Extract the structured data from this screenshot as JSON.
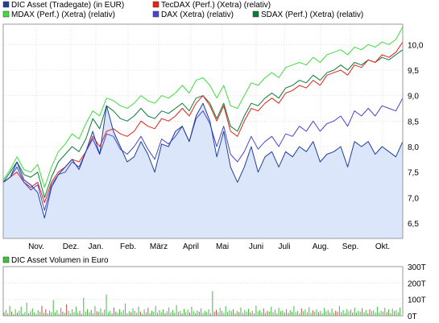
{
  "chart_data": [
    {
      "type": "line",
      "legend": [
        {
          "label": "DIC Asset (Tradegate) (in EUR)",
          "color": "#1f3f9f"
        },
        {
          "label": "TecDAX (Perf.) (Xetra) (relativ)",
          "color": "#e8231b"
        },
        {
          "label": "MDAX (Perf.) (Xetra) (relativ)",
          "color": "#3fdd3f"
        },
        {
          "label": "DAX (Xetra) (relativ)",
          "color": "#4646d2"
        },
        {
          "label": "SDAX (Perf.) (Xetra) (relativ)",
          "color": "#0d7a3d"
        }
      ],
      "x_labels": [
        "Nov.",
        "Dez.",
        "Jan.",
        "Feb.",
        "März",
        "April",
        "Mai",
        "Juni",
        "Juli",
        "Aug.",
        "Sep.",
        "Okt."
      ],
      "ylim": [
        6.2,
        10.4
      ],
      "y_ticks": [
        "6,5",
        "7,0",
        "7,5",
        "8,0",
        "8,5",
        "9,0",
        "9,5",
        "10,0"
      ],
      "series": [
        {
          "name": "DIC Asset (Tradegate) (in EUR)",
          "color": "#1f3f9f",
          "fill": "#dbe6fa",
          "x": [
            0,
            6,
            12,
            18,
            24,
            30,
            36,
            42,
            48,
            54,
            60,
            66,
            72,
            78,
            84,
            90,
            96,
            102,
            108,
            114,
            120,
            126,
            132,
            138,
            144,
            150,
            156,
            162,
            168,
            174,
            180,
            186,
            192,
            198,
            204,
            210,
            216,
            222,
            228,
            234,
            240,
            246,
            252,
            258,
            264,
            270,
            276,
            282,
            288,
            294,
            300,
            306,
            312,
            318,
            324,
            330,
            336,
            342,
            348
          ],
          "values": [
            7.3,
            7.4,
            7.7,
            7.35,
            7.25,
            7.1,
            6.6,
            7.2,
            7.45,
            7.6,
            7.75,
            7.55,
            7.9,
            8.3,
            7.85,
            8.8,
            8.3,
            8.0,
            7.7,
            7.8,
            8.1,
            7.85,
            7.5,
            8.05,
            8.0,
            8.3,
            8.4,
            8.1,
            8.6,
            8.85,
            8.5,
            7.8,
            8.3,
            7.6,
            7.3,
            7.6,
            8.0,
            7.5,
            7.8,
            7.9,
            7.6,
            7.9,
            7.8,
            8.0,
            7.9,
            8.1,
            7.7,
            7.85,
            7.9,
            8.0,
            7.6,
            8.1,
            8.0,
            8.1,
            7.85,
            8.0,
            7.9,
            7.8,
            8.1
          ]
        },
        {
          "name": "DAX (Xetra) (relativ)",
          "color": "#4646d2",
          "fill": "",
          "x": [
            0,
            6,
            12,
            18,
            24,
            30,
            36,
            42,
            48,
            54,
            60,
            66,
            72,
            78,
            84,
            90,
            96,
            102,
            108,
            114,
            120,
            126,
            132,
            138,
            144,
            150,
            156,
            162,
            168,
            174,
            180,
            186,
            192,
            198,
            204,
            210,
            216,
            222,
            228,
            234,
            240,
            246,
            252,
            258,
            264,
            270,
            276,
            282,
            288,
            294,
            300,
            306,
            312,
            318,
            324,
            330,
            336,
            342,
            348
          ],
          "values": [
            7.3,
            7.4,
            7.6,
            7.3,
            7.15,
            7.25,
            6.75,
            7.25,
            7.45,
            7.5,
            7.7,
            7.6,
            7.9,
            8.15,
            7.85,
            8.25,
            8.2,
            7.95,
            7.85,
            8.0,
            8.2,
            7.95,
            7.75,
            8.15,
            8.05,
            8.2,
            8.4,
            8.1,
            8.55,
            8.7,
            8.45,
            8.0,
            8.4,
            7.85,
            7.7,
            7.9,
            8.2,
            7.95,
            8.1,
            8.2,
            8.0,
            8.25,
            8.2,
            8.4,
            8.3,
            8.5,
            8.3,
            8.45,
            8.5,
            8.6,
            8.4,
            8.7,
            8.6,
            8.75,
            8.6,
            8.8,
            8.75,
            8.7,
            8.95
          ]
        },
        {
          "name": "TecDAX (Perf.) (Xetra) (relativ)",
          "color": "#e8231b",
          "fill": "",
          "x": [
            0,
            6,
            12,
            18,
            24,
            30,
            36,
            42,
            48,
            54,
            60,
            66,
            72,
            78,
            84,
            90,
            96,
            102,
            108,
            114,
            120,
            126,
            132,
            138,
            144,
            150,
            156,
            162,
            168,
            174,
            180,
            186,
            192,
            198,
            204,
            210,
            216,
            222,
            228,
            234,
            240,
            246,
            252,
            258,
            264,
            270,
            276,
            282,
            288,
            294,
            300,
            306,
            312,
            318,
            324,
            330,
            336,
            342,
            348
          ],
          "values": [
            7.3,
            7.4,
            7.5,
            7.3,
            7.2,
            7.3,
            6.9,
            7.3,
            7.5,
            7.6,
            7.75,
            7.7,
            7.9,
            8.2,
            8.0,
            8.3,
            8.35,
            8.25,
            8.2,
            8.3,
            8.5,
            8.4,
            8.35,
            8.55,
            8.5,
            8.6,
            8.75,
            8.6,
            8.85,
            9.0,
            8.8,
            8.5,
            8.8,
            8.3,
            8.2,
            8.5,
            8.75,
            8.7,
            8.85,
            8.95,
            8.85,
            9.05,
            9.1,
            9.2,
            9.15,
            9.3,
            9.2,
            9.4,
            9.45,
            9.5,
            9.4,
            9.6,
            9.55,
            9.7,
            9.65,
            9.8,
            9.75,
            9.85,
            10.05
          ]
        },
        {
          "name": "SDAX (Perf.) (Xetra) (relativ)",
          "color": "#0d7a3d",
          "fill": "",
          "x": [
            0,
            6,
            12,
            18,
            24,
            30,
            36,
            42,
            48,
            54,
            60,
            66,
            72,
            78,
            84,
            90,
            96,
            102,
            108,
            114,
            120,
            126,
            132,
            138,
            144,
            150,
            156,
            162,
            168,
            174,
            180,
            186,
            192,
            198,
            204,
            210,
            216,
            222,
            228,
            234,
            240,
            246,
            252,
            258,
            264,
            270,
            276,
            282,
            288,
            294,
            300,
            306,
            312,
            318,
            324,
            330,
            336,
            342,
            348
          ],
          "values": [
            7.3,
            7.5,
            7.7,
            7.45,
            7.4,
            7.5,
            7.0,
            7.4,
            7.7,
            7.85,
            8.0,
            7.9,
            8.15,
            8.55,
            8.35,
            8.8,
            8.7,
            8.55,
            8.5,
            8.6,
            8.75,
            8.6,
            8.55,
            8.7,
            8.65,
            8.75,
            8.85,
            8.7,
            8.95,
            9.0,
            8.85,
            8.55,
            8.85,
            8.4,
            8.3,
            8.6,
            8.85,
            8.8,
            8.95,
            9.05,
            8.95,
            9.15,
            9.2,
            9.3,
            9.25,
            9.4,
            9.3,
            9.45,
            9.5,
            9.6,
            9.5,
            9.65,
            9.6,
            9.7,
            9.65,
            9.75,
            9.7,
            9.8,
            9.9
          ]
        },
        {
          "name": "MDAX (Perf.) (Xetra) (relativ)",
          "color": "#3fdd3f",
          "fill": "",
          "x": [
            0,
            6,
            12,
            18,
            24,
            30,
            36,
            42,
            48,
            54,
            60,
            66,
            72,
            78,
            84,
            90,
            96,
            102,
            108,
            114,
            120,
            126,
            132,
            138,
            144,
            150,
            156,
            162,
            168,
            174,
            180,
            186,
            192,
            198,
            204,
            210,
            216,
            222,
            228,
            234,
            240,
            246,
            252,
            258,
            264,
            270,
            276,
            282,
            288,
            294,
            300,
            306,
            312,
            318,
            324,
            330,
            336,
            342,
            348
          ],
          "values": [
            7.35,
            7.55,
            7.8,
            7.55,
            7.5,
            7.65,
            7.2,
            7.6,
            7.9,
            8.05,
            8.25,
            8.15,
            8.45,
            8.7,
            8.6,
            8.95,
            8.9,
            8.8,
            8.75,
            8.85,
            9.0,
            8.9,
            8.85,
            9.0,
            8.95,
            9.05,
            9.2,
            9.05,
            9.3,
            9.35,
            9.2,
            8.95,
            9.2,
            8.8,
            8.75,
            9.0,
            9.25,
            9.2,
            9.35,
            9.45,
            9.35,
            9.55,
            9.6,
            9.65,
            9.6,
            9.75,
            9.65,
            9.8,
            9.85,
            9.9,
            9.8,
            9.95,
            9.9,
            10.0,
            9.95,
            10.05,
            10.0,
            10.1,
            10.35
          ]
        }
      ]
    },
    {
      "type": "bar",
      "legend": [
        {
          "label": "DIC Asset Volumen in Euro",
          "color": "#3fbe3f"
        }
      ],
      "ylim": [
        0,
        300
      ],
      "y_ticks": [
        "300T",
        "200T",
        "100T",
        "0T"
      ],
      "values": [
        20,
        35,
        15,
        60,
        25,
        10,
        40,
        18,
        30,
        55,
        12,
        22,
        80,
        15,
        28,
        45,
        20,
        12,
        35,
        25,
        60,
        18,
        40,
        15,
        30,
        22,
        95,
        20,
        35,
        12,
        48,
        25,
        18,
        70,
        30,
        15,
        40,
        22,
        55,
        18,
        30,
        12,
        110,
        25,
        40,
        20,
        35,
        15,
        60,
        28,
        22,
        45,
        18,
        38,
        130,
        20,
        30,
        15,
        50,
        25,
        18,
        40,
        22,
        35,
        75,
        15,
        28,
        20,
        45,
        30,
        18,
        55,
        25,
        12,
        38,
        20,
        48,
        15,
        30,
        25,
        60,
        18,
        35,
        22,
        40,
        15,
        28,
        50,
        20,
        35,
        18,
        65,
        25,
        30,
        15,
        42,
        22,
        38,
        20,
        55,
        28,
        15,
        32,
        25,
        45,
        18,
        30,
        22,
        40,
        15,
        150,
        25,
        35,
        20,
        48,
        30,
        18,
        58,
        22,
        35,
        28,
        40,
        15,
        30,
        22,
        50,
        18,
        36,
        25,
        42,
        20,
        30,
        15,
        62,
        28,
        35,
        20,
        45,
        18,
        30,
        25,
        55,
        22,
        38,
        15,
        48,
        28,
        32,
        20,
        40,
        18,
        35,
        25,
        58,
        22,
        30,
        15,
        45,
        28,
        38,
        20,
        52,
        18,
        33,
        25,
        40,
        22,
        30,
        15,
        48,
        28,
        36,
        20,
        44,
        18,
        30,
        25,
        60,
        22,
        35,
        15,
        42,
        28,
        38,
        20,
        50,
        18,
        30,
        25,
        46,
        22,
        35,
        15,
        40,
        28,
        33,
        20,
        55,
        18,
        30,
        25,
        48,
        22,
        38,
        15,
        44,
        28,
        35,
        20,
        50
      ]
    }
  ]
}
